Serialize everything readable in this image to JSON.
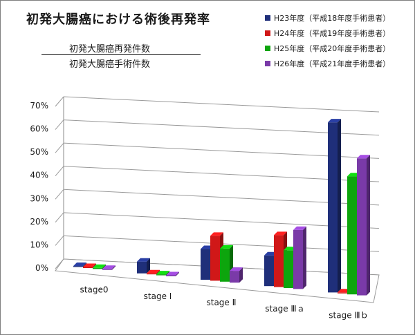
{
  "title": "初発大腸癌における術後再発率",
  "formula": {
    "numerator": "初発大腸癌再発件数",
    "denominator": "初発大腸癌手術件数"
  },
  "chart_data": {
    "type": "bar",
    "title": "初発大腸癌における術後再発率",
    "categories": [
      "stage0",
      "stage Ⅰ",
      "stage Ⅱ",
      "stage Ⅲａ",
      "stage Ⅲｂ"
    ],
    "y_ticks": [
      "0%",
      "10%",
      "20%",
      "30%",
      "40%",
      "50%",
      "60%",
      "70%"
    ],
    "ylim": [
      0,
      70
    ],
    "y_unit": "%",
    "legend_position": "top-right",
    "series": [
      {
        "name": "H23年度（平成18年度手術患者）",
        "color": "#1f2f7a",
        "values": [
          0,
          5,
          13,
          13,
          72
        ]
      },
      {
        "name": "H24年度（平成19年度手術患者）",
        "color": "#d01818",
        "values": [
          0,
          0,
          19,
          22,
          0
        ]
      },
      {
        "name": "H25年度（平成20年度手術患者）",
        "color": "#0da50d",
        "values": [
          0,
          0,
          14,
          16,
          50
        ]
      },
      {
        "name": "H26年度（平成21年度手術患者）",
        "color": "#7a3aa8",
        "values": [
          0,
          0,
          5,
          25,
          58
        ]
      }
    ]
  }
}
